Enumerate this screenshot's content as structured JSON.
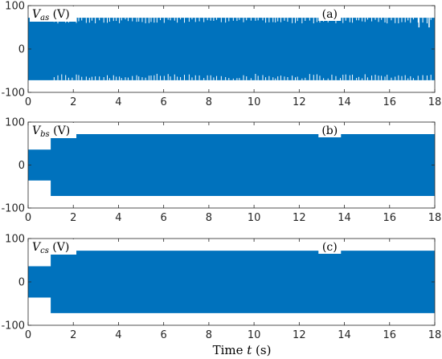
{
  "chart_data": [
    {
      "type": "area",
      "panel": "(a)",
      "ylabel_var": "V",
      "ylabel_sub": "as",
      "ylabel_unit": "(V)",
      "xlim": [
        0,
        18
      ],
      "ylim": [
        -100,
        100
      ],
      "xticks": [
        0,
        2,
        4,
        6,
        8,
        10,
        12,
        14,
        16,
        18
      ],
      "yticks": [
        100,
        0,
        -100
      ],
      "series": [
        {
          "x": [
            0,
            18
          ],
          "upper": [
            72,
            72
          ],
          "lower": [
            -72,
            -72
          ]
        }
      ]
    },
    {
      "type": "area",
      "panel": "(b)",
      "ylabel_var": "V",
      "ylabel_sub": "bs",
      "ylabel_unit": "(V)",
      "xlim": [
        0,
        18
      ],
      "ylim": [
        -100,
        100
      ],
      "xticks": [
        0,
        2,
        4,
        6,
        8,
        10,
        12,
        14,
        16,
        18
      ],
      "yticks": [
        100,
        0,
        -100
      ],
      "series": [
        {
          "x": [
            0,
            1,
            1,
            18
          ],
          "upper": [
            36,
            36,
            72,
            72
          ],
          "lower": [
            -36,
            -36,
            -72,
            -72
          ]
        }
      ]
    },
    {
      "type": "area",
      "panel": "(c)",
      "ylabel_var": "V",
      "ylabel_sub": "cs",
      "ylabel_unit": "(V)",
      "xlim": [
        0,
        18
      ],
      "ylim": [
        -100,
        100
      ],
      "xticks": [
        0,
        2,
        4,
        6,
        8,
        10,
        12,
        14,
        16,
        18
      ],
      "yticks": [
        100,
        0,
        -100
      ],
      "series": [
        {
          "x": [
            0,
            1,
            1,
            18
          ],
          "upper": [
            36,
            36,
            72,
            72
          ],
          "lower": [
            -36,
            -36,
            -72,
            -72
          ]
        }
      ]
    }
  ],
  "xlabel": {
    "prefix": "Time ",
    "var": "t",
    "suffix": " (s)"
  },
  "colors": {
    "fill": "#0072BD",
    "axis": "#262626"
  }
}
